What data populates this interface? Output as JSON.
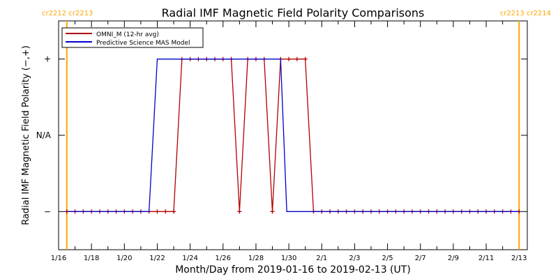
{
  "chart_data": {
    "type": "line",
    "title": "Radial IMF Magnetic Field Polarity Comparisons",
    "xlabel": "Month/Day from 2019-01-16 to 2019-02-13 (UT)",
    "ylabel": "Radial IMF Magnetic Field Polarity (−,+)",
    "xlim": [
      "2019-01-16T00:00",
      "2019-02-13T12:00"
    ],
    "ylim": [
      -1.5,
      1.5
    ],
    "x_ticks": [
      {
        "date": "2019-01-16",
        "label": "1/16"
      },
      {
        "date": "2019-01-18",
        "label": "1/18"
      },
      {
        "date": "2019-01-20",
        "label": "1/20"
      },
      {
        "date": "2019-01-22",
        "label": "1/22"
      },
      {
        "date": "2019-01-24",
        "label": "1/24"
      },
      {
        "date": "2019-01-26",
        "label": "1/26"
      },
      {
        "date": "2019-01-28",
        "label": "1/28"
      },
      {
        "date": "2019-01-30",
        "label": "1/30"
      },
      {
        "date": "2019-02-01",
        "label": "2/1"
      },
      {
        "date": "2019-02-03",
        "label": "2/3"
      },
      {
        "date": "2019-02-05",
        "label": "2/5"
      },
      {
        "date": "2019-02-07",
        "label": "2/7"
      },
      {
        "date": "2019-02-09",
        "label": "2/9"
      },
      {
        "date": "2019-02-11",
        "label": "2/11"
      },
      {
        "date": "2019-02-13",
        "label": "2/13"
      }
    ],
    "y_ticks": [
      {
        "value": 1,
        "label": "+"
      },
      {
        "value": 0,
        "label": "N/A"
      },
      {
        "value": -1,
        "label": "−"
      }
    ],
    "carrington_markers": [
      {
        "date": "2019-01-16T12:00",
        "label": "cr2212 cr2213",
        "side": "left",
        "color": "#ffa500"
      },
      {
        "date": "2019-02-13T00:00",
        "label": "cr2213 cr2214",
        "side": "right",
        "color": "#ffa500"
      }
    ],
    "legend": {
      "placement": "top-left"
    },
    "series": [
      {
        "name": "OMNI_M (12-hr avg)",
        "color": "#b00000",
        "marker": "plus",
        "points": [
          [
            "2019-01-16T12:00",
            -1
          ],
          [
            "2019-01-17T00:00",
            -1
          ],
          [
            "2019-01-17T12:00",
            -1
          ],
          [
            "2019-01-18T00:00",
            -1
          ],
          [
            "2019-01-18T12:00",
            -1
          ],
          [
            "2019-01-19T00:00",
            -1
          ],
          [
            "2019-01-19T12:00",
            -1
          ],
          [
            "2019-01-20T00:00",
            -1
          ],
          [
            "2019-01-20T12:00",
            -1
          ],
          [
            "2019-01-21T00:00",
            -1
          ],
          [
            "2019-01-21T12:00",
            -1
          ],
          [
            "2019-01-22T00:00",
            -1
          ],
          [
            "2019-01-22T12:00",
            -1
          ],
          [
            "2019-01-23T00:00",
            -1
          ],
          [
            "2019-01-23T12:00",
            1
          ],
          [
            "2019-01-24T00:00",
            1
          ],
          [
            "2019-01-24T12:00",
            1
          ],
          [
            "2019-01-25T00:00",
            1
          ],
          [
            "2019-01-25T12:00",
            1
          ],
          [
            "2019-01-26T00:00",
            1
          ],
          [
            "2019-01-26T12:00",
            1
          ],
          [
            "2019-01-27T00:00",
            -1
          ],
          [
            "2019-01-27T12:00",
            1
          ],
          [
            "2019-01-28T00:00",
            1
          ],
          [
            "2019-01-28T12:00",
            1
          ],
          [
            "2019-01-29T00:00",
            -1
          ],
          [
            "2019-01-29T12:00",
            1
          ],
          [
            "2019-01-30T00:00",
            1
          ],
          [
            "2019-01-30T12:00",
            1
          ],
          [
            "2019-01-31T00:00",
            1
          ],
          [
            "2019-01-31T12:00",
            -1
          ],
          [
            "2019-02-01T00:00",
            -1
          ],
          [
            "2019-02-01T12:00",
            -1
          ],
          [
            "2019-02-02T00:00",
            -1
          ],
          [
            "2019-02-02T12:00",
            -1
          ],
          [
            "2019-02-03T00:00",
            -1
          ],
          [
            "2019-02-03T12:00",
            -1
          ],
          [
            "2019-02-04T00:00",
            -1
          ],
          [
            "2019-02-04T12:00",
            -1
          ],
          [
            "2019-02-05T00:00",
            -1
          ],
          [
            "2019-02-05T12:00",
            -1
          ],
          [
            "2019-02-06T00:00",
            -1
          ],
          [
            "2019-02-06T12:00",
            -1
          ],
          [
            "2019-02-07T00:00",
            -1
          ],
          [
            "2019-02-07T12:00",
            -1
          ],
          [
            "2019-02-08T00:00",
            -1
          ],
          [
            "2019-02-08T12:00",
            -1
          ],
          [
            "2019-02-09T00:00",
            -1
          ],
          [
            "2019-02-09T12:00",
            -1
          ],
          [
            "2019-02-10T00:00",
            -1
          ],
          [
            "2019-02-10T12:00",
            -1
          ],
          [
            "2019-02-11T00:00",
            -1
          ],
          [
            "2019-02-11T12:00",
            -1
          ],
          [
            "2019-02-12T00:00",
            -1
          ],
          [
            "2019-02-12T12:00",
            -1
          ],
          [
            "2019-02-13T00:00",
            -1
          ]
        ]
      },
      {
        "name": "Predictive Science MAS Model",
        "color": "#0000cc",
        "marker": "none",
        "points": [
          [
            "2019-01-16T12:00",
            -1
          ],
          [
            "2019-01-21T12:00",
            -1
          ],
          [
            "2019-01-22T00:00",
            1
          ],
          [
            "2019-01-29T12:00",
            1
          ],
          [
            "2019-01-29T21:00",
            -1
          ],
          [
            "2019-02-13T00:00",
            -1
          ]
        ]
      }
    ]
  }
}
